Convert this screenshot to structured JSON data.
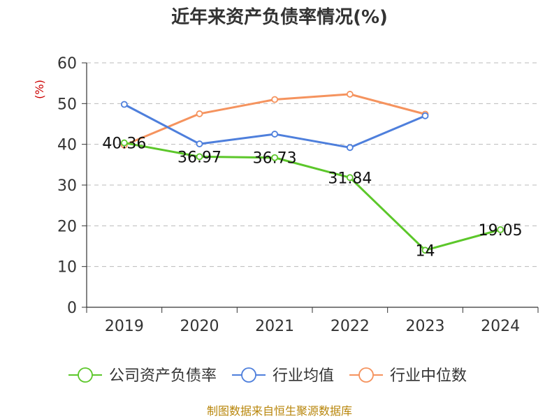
{
  "chart_data": {
    "type": "line",
    "title": "近年来资产负债率情况(%)",
    "ylabel": "(%)",
    "categories": [
      "2019",
      "2020",
      "2021",
      "2022",
      "2023",
      "2024"
    ],
    "ylim": [
      0,
      60
    ],
    "yticks": [
      0,
      10,
      20,
      30,
      40,
      50,
      60
    ],
    "grid": true,
    "legend_position": "bottom",
    "series": [
      {
        "name": "公司资产负债率",
        "color": "#5cc72a",
        "values": [
          40.36,
          36.97,
          36.73,
          31.84,
          14,
          19.05
        ],
        "show_labels": true,
        "labels": [
          "40.36",
          "36.97",
          "36.73",
          "31.84",
          "14",
          "19.05"
        ]
      },
      {
        "name": "行业均值",
        "color": "#4e7fdc",
        "values": [
          49.8,
          40.1,
          42.5,
          39.2,
          47.0,
          null
        ],
        "show_labels": false
      },
      {
        "name": "行业中位数",
        "color": "#f5935e",
        "values": [
          39.8,
          47.5,
          51.0,
          52.3,
          47.4,
          null
        ],
        "show_labels": false
      }
    ]
  },
  "source_text": "制图数据来自恒生聚源数据库"
}
